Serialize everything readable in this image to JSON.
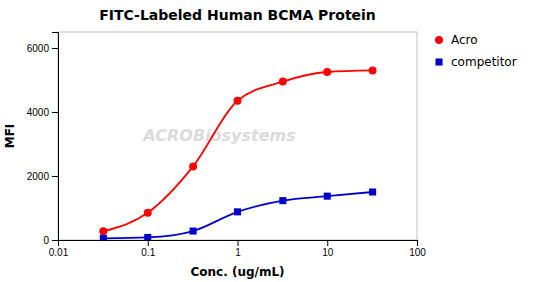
{
  "chart_data": {
    "type": "line",
    "title": "FITC-Labeled Human BCMA Protein",
    "xlabel": "Conc. (ug/mL)",
    "ylabel": "MFI",
    "log": "x",
    "xlim": [
      0.01,
      100
    ],
    "xticks": [
      0.01,
      0.1,
      1,
      10,
      100
    ],
    "ylim": [
      0,
      6500
    ],
    "yticks": [
      0,
      2000,
      4000,
      6000
    ],
    "grid": false,
    "legend": "right",
    "annotations": [
      "ACROBiosystems"
    ],
    "x": [
      0.032,
      0.1,
      0.32,
      1.0,
      3.2,
      10.0,
      32.0
    ],
    "series": [
      {
        "name": "Acro",
        "color": "#FF0000",
        "marker": "circle",
        "line_style": "solid",
        "values": [
          270,
          850,
          2300,
          4350,
          4950,
          5250,
          5300
        ]
      },
      {
        "name": "competitor",
        "color": "#0000CC",
        "marker": "square",
        "line_style": "solid",
        "values": [
          50,
          80,
          280,
          880,
          1230,
          1370,
          1500
        ]
      }
    ]
  }
}
